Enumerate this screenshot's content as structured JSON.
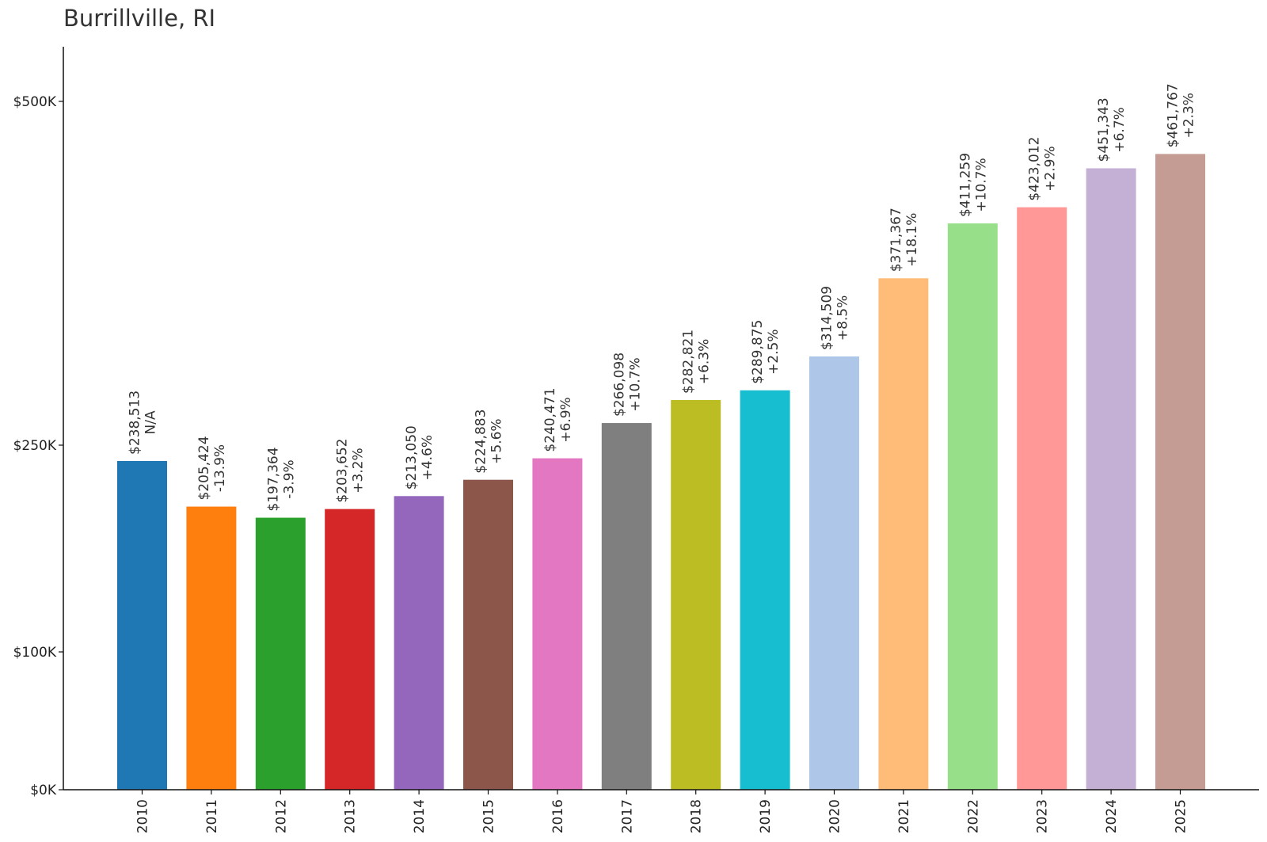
{
  "chart_data": {
    "type": "bar",
    "title": "Burrillville, RI",
    "xlabel": "",
    "ylabel": "",
    "categories": [
      "2010",
      "2011",
      "2012",
      "2013",
      "2014",
      "2015",
      "2016",
      "2017",
      "2018",
      "2019",
      "2020",
      "2021",
      "2022",
      "2023",
      "2024",
      "2025"
    ],
    "values": [
      238513,
      205424,
      197364,
      203652,
      213050,
      224883,
      240471,
      266098,
      282821,
      289875,
      314509,
      371367,
      411259,
      423012,
      451343,
      461767
    ],
    "value_labels": [
      "$238,513",
      "$205,424",
      "$197,364",
      "$203,652",
      "$213,050",
      "$224,883",
      "$240,471",
      "$266,098",
      "$282,821",
      "$289,875",
      "$314,509",
      "$371,367",
      "$411,259",
      "$423,012",
      "$451,343",
      "$461,767"
    ],
    "change_labels": [
      "N/A",
      "-13.9%",
      "-3.9%",
      "+3.2%",
      "+4.6%",
      "+5.6%",
      "+6.9%",
      "+10.7%",
      "+6.3%",
      "+2.5%",
      "+8.5%",
      "+18.1%",
      "+10.7%",
      "+2.9%",
      "+6.7%",
      "+2.3%"
    ],
    "colors": [
      "#1f77b4",
      "#ff7f0e",
      "#2ca02c",
      "#d62728",
      "#9467bd",
      "#8c564b",
      "#e377c2",
      "#7f7f7f",
      "#bcbd22",
      "#17becf",
      "#aec7e8",
      "#ffbb78",
      "#98df8a",
      "#ff9896",
      "#c5b0d5",
      "#c49c94"
    ],
    "y_ticks": [
      {
        "value": 0,
        "label": "$0K"
      },
      {
        "value": 100000,
        "label": "$100K"
      },
      {
        "value": 250000,
        "label": "$250K"
      },
      {
        "value": 500000,
        "label": "$500K"
      }
    ],
    "ylim": [
      0,
      540000
    ],
    "grid": false,
    "legend": "none"
  }
}
